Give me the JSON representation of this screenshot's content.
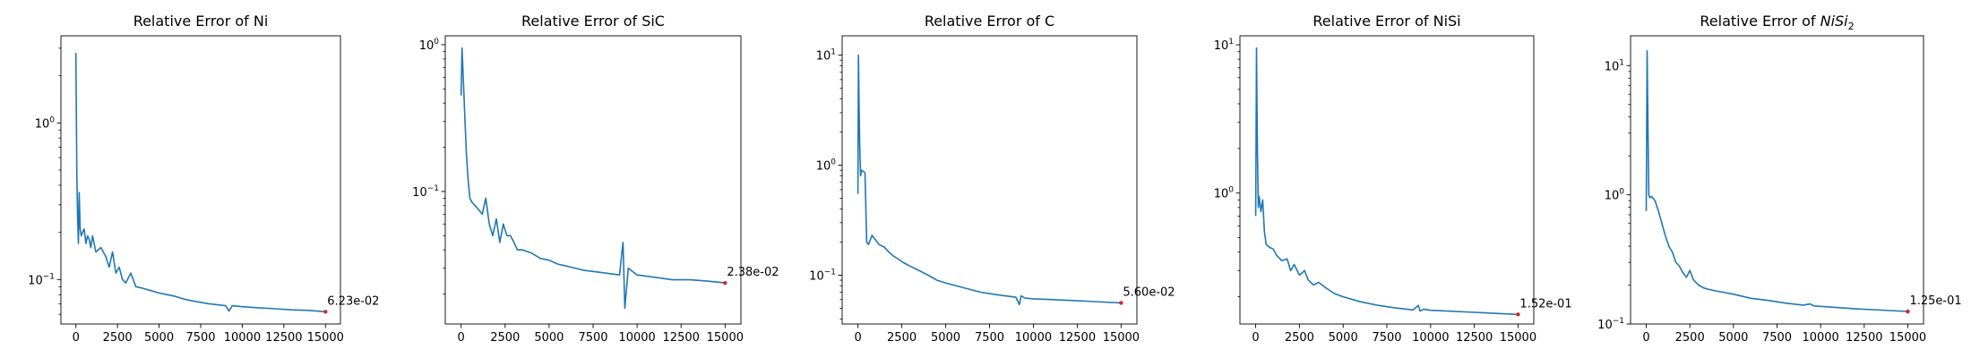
{
  "colors": {
    "line": "#1f77b4",
    "final_marker": "#d62728",
    "axes": "#000000",
    "background": "#ffffff"
  },
  "chart_data": [
    {
      "type": "line",
      "yscale": "log",
      "grid": false,
      "title": "Relative Error of Ni",
      "title_subscript": "",
      "xlabel": "",
      "ylabel": "",
      "xlim": [
        -900,
        15900
      ],
      "ylim": [
        0.052,
        3.6
      ],
      "xticks": [
        0,
        2500,
        5000,
        7500,
        10000,
        12500,
        15000
      ],
      "xtick_labels": [
        "0",
        "2500",
        "5000",
        "7500",
        "10000",
        "12500",
        "15000"
      ],
      "ytick_labels": [
        {
          "base": "10",
          "exp": "−1",
          "value": 0.1
        },
        {
          "base": "10",
          "exp": "0",
          "value": 1
        }
      ],
      "series": [
        {
          "x": [
            0,
            30,
            60,
            100,
            150,
            200,
            260,
            320,
            400,
            500,
            600,
            700,
            800,
            900,
            1000,
            1200,
            1500,
            1800,
            2000,
            2200,
            2400,
            2600,
            2800,
            3000,
            3300,
            3600,
            4000,
            4500,
            5000,
            5500,
            6000,
            6500,
            7000,
            8000,
            9000,
            9200,
            9400,
            10000,
            11000,
            12000,
            13000,
            14000,
            15000
          ],
          "y": [
            2.8,
            1.0,
            0.45,
            0.25,
            0.17,
            0.36,
            0.21,
            0.19,
            0.2,
            0.21,
            0.17,
            0.19,
            0.18,
            0.16,
            0.19,
            0.15,
            0.16,
            0.14,
            0.12,
            0.15,
            0.11,
            0.12,
            0.1,
            0.095,
            0.11,
            0.09,
            0.088,
            0.085,
            0.082,
            0.08,
            0.078,
            0.075,
            0.073,
            0.07,
            0.068,
            0.063,
            0.068,
            0.067,
            0.066,
            0.065,
            0.064,
            0.0635,
            0.0623
          ]
        }
      ],
      "final_point": {
        "x": 15000,
        "y": 0.0623,
        "label": "6.23e-02"
      }
    },
    {
      "type": "line",
      "yscale": "log",
      "grid": false,
      "title": "Relative Error of SiC",
      "title_subscript": "",
      "xlabel": "",
      "ylabel": "",
      "xlim": [
        -900,
        15900
      ],
      "ylim": [
        0.0125,
        1.15
      ],
      "xticks": [
        0,
        2500,
        5000,
        7500,
        10000,
        12500,
        15000
      ],
      "xtick_labels": [
        "0",
        "2500",
        "5000",
        "7500",
        "10000",
        "12500",
        "15000"
      ],
      "ytick_labels": [
        {
          "base": "10",
          "exp": "−1",
          "value": 0.1
        },
        {
          "base": "10",
          "exp": "0",
          "value": 1
        }
      ],
      "series": [
        {
          "x": [
            0,
            50,
            100,
            150,
            200,
            250,
            300,
            400,
            500,
            600,
            800,
            1000,
            1200,
            1400,
            1600,
            1800,
            2000,
            2200,
            2400,
            2600,
            2800,
            3000,
            3200,
            3500,
            4000,
            4500,
            5000,
            5500,
            6000,
            7000,
            8000,
            9000,
            9200,
            9300,
            9500,
            10000,
            11000,
            12000,
            13000,
            14000,
            15000
          ],
          "y": [
            0.45,
            0.95,
            0.7,
            0.5,
            0.35,
            0.25,
            0.18,
            0.12,
            0.09,
            0.085,
            0.08,
            0.075,
            0.07,
            0.09,
            0.06,
            0.05,
            0.065,
            0.045,
            0.06,
            0.05,
            0.05,
            0.045,
            0.04,
            0.04,
            0.038,
            0.035,
            0.034,
            0.032,
            0.031,
            0.029,
            0.028,
            0.027,
            0.045,
            0.016,
            0.03,
            0.027,
            0.026,
            0.025,
            0.025,
            0.0245,
            0.0238
          ]
        }
      ],
      "final_point": {
        "x": 15000,
        "y": 0.0238,
        "label": "2.38e-02"
      }
    },
    {
      "type": "line",
      "yscale": "log",
      "grid": false,
      "title": "Relative Error of C",
      "title_subscript": "",
      "xlabel": "",
      "ylabel": "",
      "xlim": [
        -900,
        15900
      ],
      "ylim": [
        0.036,
        15.0
      ],
      "xticks": [
        0,
        2500,
        5000,
        7500,
        10000,
        12500,
        15000
      ],
      "xtick_labels": [
        "0",
        "2500",
        "5000",
        "7500",
        "10000",
        "12500",
        "15000"
      ],
      "ytick_labels": [
        {
          "base": "10",
          "exp": "−1",
          "value": 0.1
        },
        {
          "base": "10",
          "exp": "0",
          "value": 1
        },
        {
          "base": "10",
          "exp": "1",
          "value": 10
        }
      ],
      "series": [
        {
          "x": [
            0,
            30,
            60,
            100,
            150,
            200,
            300,
            400,
            500,
            600,
            800,
            1000,
            1200,
            1500,
            1800,
            2000,
            2300,
            2600,
            3000,
            3500,
            4000,
            4500,
            5000,
            6000,
            7000,
            8000,
            9000,
            9200,
            9300,
            9500,
            10000,
            11000,
            12000,
            13000,
            14000,
            15000
          ],
          "y": [
            0.55,
            10.0,
            4.0,
            1.5,
            0.8,
            0.9,
            0.88,
            0.85,
            0.2,
            0.19,
            0.23,
            0.21,
            0.19,
            0.18,
            0.16,
            0.15,
            0.14,
            0.13,
            0.12,
            0.11,
            0.1,
            0.09,
            0.085,
            0.077,
            0.07,
            0.066,
            0.063,
            0.054,
            0.065,
            0.062,
            0.061,
            0.06,
            0.059,
            0.058,
            0.057,
            0.056
          ]
        }
      ],
      "final_point": {
        "x": 15000,
        "y": 0.056,
        "label": "5.60e-02"
      }
    },
    {
      "type": "line",
      "yscale": "log",
      "grid": false,
      "title": "Relative Error of NiSi",
      "title_subscript": "",
      "xlabel": "",
      "ylabel": "",
      "xlim": [
        -900,
        15900
      ],
      "ylim": [
        0.131,
        11.5
      ],
      "xticks": [
        0,
        2500,
        5000,
        7500,
        10000,
        12500,
        15000
      ],
      "xtick_labels": [
        "0",
        "2500",
        "5000",
        "7500",
        "10000",
        "12500",
        "15000"
      ],
      "ytick_labels": [
        {
          "base": "10",
          "exp": "0",
          "value": 1
        },
        {
          "base": "10",
          "exp": "1",
          "value": 10
        }
      ],
      "series": [
        {
          "x": [
            0,
            50,
            100,
            150,
            200,
            300,
            400,
            500,
            600,
            800,
            1000,
            1200,
            1500,
            1800,
            2000,
            2200,
            2500,
            2800,
            3000,
            3300,
            3600,
            4000,
            4500,
            5000,
            6000,
            7000,
            8000,
            9000,
            9300,
            9400,
            9600,
            10000,
            11000,
            12000,
            13000,
            14000,
            15000
          ],
          "y": [
            0.7,
            9.5,
            2.0,
            0.8,
            0.95,
            0.75,
            0.9,
            0.55,
            0.45,
            0.43,
            0.42,
            0.38,
            0.35,
            0.36,
            0.3,
            0.33,
            0.28,
            0.3,
            0.26,
            0.24,
            0.25,
            0.23,
            0.21,
            0.2,
            0.185,
            0.175,
            0.168,
            0.163,
            0.175,
            0.16,
            0.165,
            0.162,
            0.16,
            0.158,
            0.156,
            0.154,
            0.152
          ]
        }
      ],
      "final_point": {
        "x": 15000,
        "y": 0.152,
        "label": "1.52e-01"
      }
    },
    {
      "type": "line",
      "yscale": "log",
      "grid": false,
      "title": "Relative Error of ",
      "title_subscript": "2",
      "title_italic": "NiSi",
      "xlabel": "",
      "ylabel": "",
      "xlim": [
        -900,
        15900
      ],
      "ylim": [
        0.1,
        17.0
      ],
      "xticks": [
        0,
        2500,
        5000,
        7500,
        10000,
        12500,
        15000
      ],
      "xtick_labels": [
        "0",
        "2500",
        "5000",
        "7500",
        "10000",
        "12500",
        "15000"
      ],
      "ytick_labels": [
        {
          "base": "10",
          "exp": "−1",
          "value": 0.1
        },
        {
          "base": "10",
          "exp": "0",
          "value": 1
        },
        {
          "base": "10",
          "exp": "1",
          "value": 10
        }
      ],
      "series": [
        {
          "x": [
            0,
            50,
            100,
            150,
            200,
            300,
            500,
            700,
            900,
            1100,
            1300,
            1500,
            1700,
            1900,
            2100,
            2300,
            2500,
            2700,
            3000,
            3300,
            3600,
            4000,
            4500,
            5000,
            6000,
            7000,
            8000,
            9000,
            9400,
            9600,
            10000,
            11000,
            12000,
            13000,
            14000,
            15000
          ],
          "y": [
            0.75,
            13.0,
            3.0,
            1.0,
            0.95,
            0.97,
            0.9,
            0.75,
            0.6,
            0.48,
            0.4,
            0.36,
            0.3,
            0.28,
            0.25,
            0.23,
            0.26,
            0.22,
            0.2,
            0.19,
            0.185,
            0.18,
            0.175,
            0.17,
            0.158,
            0.152,
            0.145,
            0.14,
            0.143,
            0.138,
            0.137,
            0.134,
            0.131,
            0.129,
            0.127,
            0.125
          ]
        }
      ],
      "final_point": {
        "x": 15000,
        "y": 0.125,
        "label": "1.25e-01"
      }
    }
  ]
}
